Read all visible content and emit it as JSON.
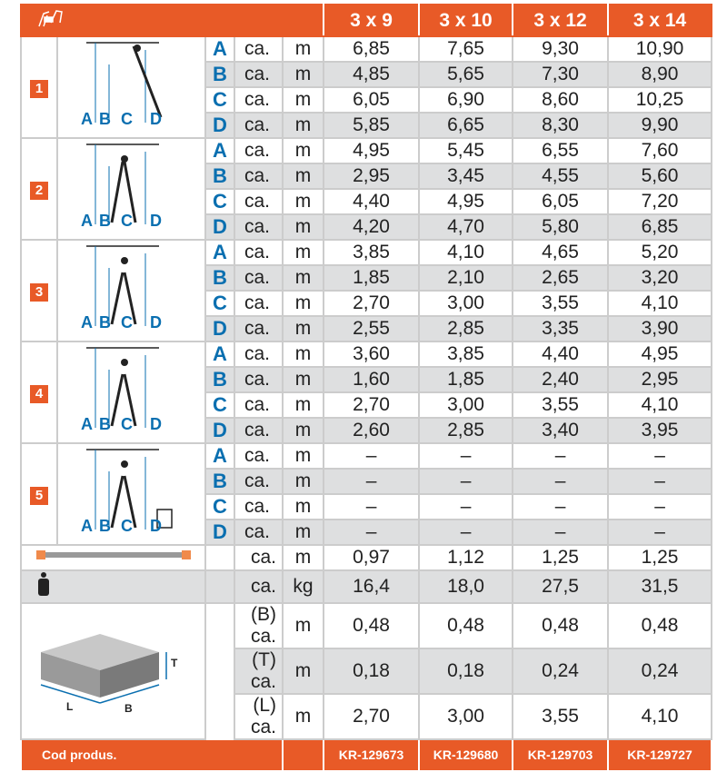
{
  "header": {
    "sizes": [
      "3 x 9",
      "3 x 10",
      "3 x 12",
      "3 x 14"
    ]
  },
  "colors": {
    "accent": "#e85a27",
    "letters": "#0a6fb0",
    "stripe": "#dedfe0"
  },
  "groups": [
    {
      "num": "1",
      "rows": [
        [
          "A",
          "ca.",
          "m",
          "6,85",
          "7,65",
          "9,30",
          "10,90"
        ],
        [
          "B",
          "ca.",
          "m",
          "4,85",
          "5,65",
          "7,30",
          "8,90"
        ],
        [
          "C",
          "ca.",
          "m",
          "6,05",
          "6,90",
          "8,60",
          "10,25"
        ],
        [
          "D",
          "ca.",
          "m",
          "5,85",
          "6,65",
          "8,30",
          "9,90"
        ]
      ]
    },
    {
      "num": "2",
      "rows": [
        [
          "A",
          "ca.",
          "m",
          "4,95",
          "5,45",
          "6,55",
          "7,60"
        ],
        [
          "B",
          "ca.",
          "m",
          "2,95",
          "3,45",
          "4,55",
          "5,60"
        ],
        [
          "C",
          "ca.",
          "m",
          "4,40",
          "4,95",
          "6,05",
          "7,20"
        ],
        [
          "D",
          "ca.",
          "m",
          "4,20",
          "4,70",
          "5,80",
          "6,85"
        ]
      ]
    },
    {
      "num": "3",
      "rows": [
        [
          "A",
          "ca.",
          "m",
          "3,85",
          "4,10",
          "4,65",
          "5,20"
        ],
        [
          "B",
          "ca.",
          "m",
          "1,85",
          "2,10",
          "2,65",
          "3,20"
        ],
        [
          "C",
          "ca.",
          "m",
          "2,70",
          "3,00",
          "3,55",
          "4,10"
        ],
        [
          "D",
          "ca.",
          "m",
          "2,55",
          "2,85",
          "3,35",
          "3,90"
        ]
      ]
    },
    {
      "num": "4",
      "rows": [
        [
          "A",
          "ca.",
          "m",
          "3,60",
          "3,85",
          "4,40",
          "4,95"
        ],
        [
          "B",
          "ca.",
          "m",
          "1,60",
          "1,85",
          "2,40",
          "2,95"
        ],
        [
          "C",
          "ca.",
          "m",
          "2,70",
          "3,00",
          "3,55",
          "4,10"
        ],
        [
          "D",
          "ca.",
          "m",
          "2,60",
          "2,85",
          "3,40",
          "3,95"
        ]
      ]
    },
    {
      "num": "5",
      "rows": [
        [
          "A",
          "ca.",
          "m",
          "–",
          "–",
          "–",
          "–"
        ],
        [
          "B",
          "ca.",
          "m",
          "–",
          "–",
          "–",
          "–"
        ],
        [
          "C",
          "ca.",
          "m",
          "–",
          "–",
          "–",
          "–"
        ],
        [
          "D",
          "ca.",
          "m",
          "–",
          "–",
          "–",
          "–"
        ]
      ]
    }
  ],
  "diagram_labels": [
    "A",
    "B",
    "C",
    "D"
  ],
  "length_row": [
    "ca.",
    "m",
    "0,97",
    "1,12",
    "1,25",
    "1,25"
  ],
  "weight_row": [
    "ca.",
    "kg",
    "16,4",
    "18,0",
    "27,5",
    "31,5"
  ],
  "pack_rows": [
    [
      "(B) ca.",
      "m",
      "0,48",
      "0,48",
      "0,48",
      "0,48"
    ],
    [
      "(T) ca.",
      "m",
      "0,18",
      "0,18",
      "0,24",
      "0,24"
    ],
    [
      "(L) ca.",
      "m",
      "2,70",
      "3,00",
      "3,55",
      "4,10"
    ]
  ],
  "pack_labels": {
    "t": "T",
    "l": "L",
    "b": "B"
  },
  "footer": {
    "label": "Cod produs.",
    "codes": [
      "KR-129673",
      "KR-129680",
      "KR-129703",
      "KR-129727"
    ]
  }
}
